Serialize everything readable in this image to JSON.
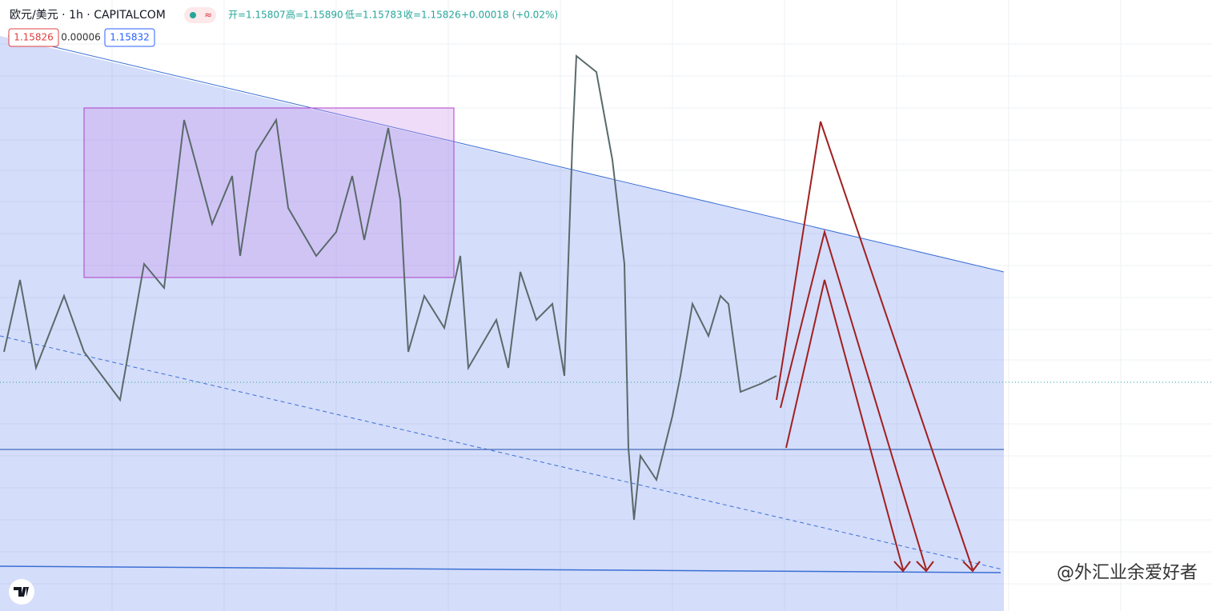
{
  "header": {
    "symbol": "欧元/美元 · 1h · CAPITALCOM",
    "badge": "≈",
    "open": "开=1.15807",
    "high": "高=1.15890",
    "low": "低=1.15783",
    "close": "收=1.15826",
    "change": "+0.00018 (+0.02%)"
  },
  "price_boxes": {
    "bid": "1.15826",
    "spread": "0.00006",
    "ask": "1.15832"
  },
  "watermark": "@外汇业余爱好者"
}
